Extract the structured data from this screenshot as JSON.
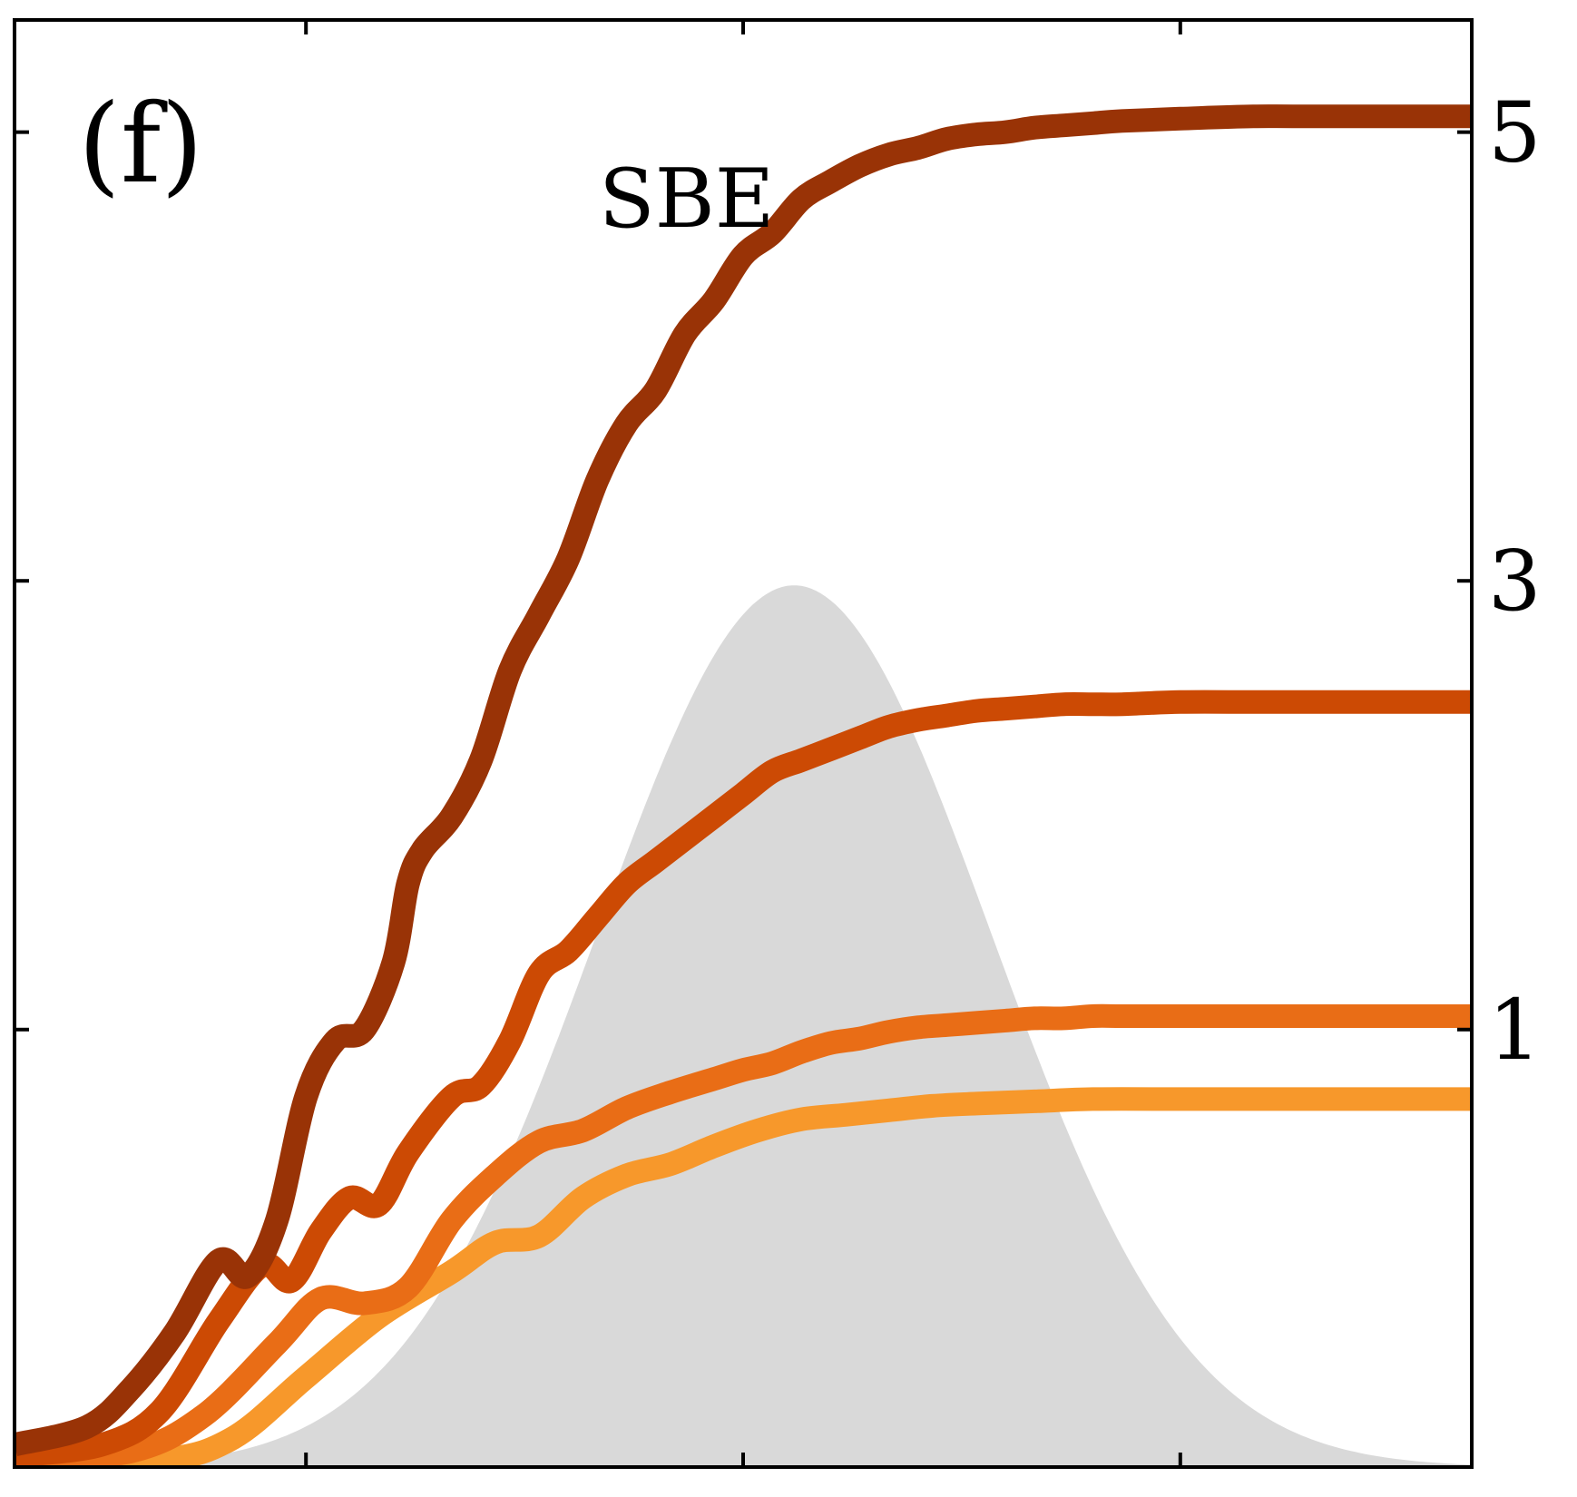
{
  "chart_data": {
    "type": "line",
    "panel_label": "(f)",
    "title": "SBE",
    "xlabel": "",
    "ylabel": "",
    "xlim": [
      0,
      1
    ],
    "ylim": [
      -0.95,
      5.5
    ],
    "x_ticks": [
      0.2,
      0.5,
      0.8
    ],
    "y_axis_side": "right",
    "y_ticks": [
      1,
      3,
      5
    ],
    "y_tick_labels": [
      "1",
      "3",
      "5"
    ],
    "grid": false,
    "legend": "none",
    "background_pulse": {
      "color": "#d9d9d9",
      "center": 0.535,
      "peak": 2.98,
      "baseline": -0.95,
      "width": 0.135
    },
    "series": [
      {
        "color": "#993306",
        "x": [
          0.0,
          0.05,
          0.08,
          0.11,
          0.14,
          0.16,
          0.18,
          0.2,
          0.22,
          0.24,
          0.26,
          0.27,
          0.28,
          0.3,
          0.32,
          0.34,
          0.36,
          0.38,
          0.4,
          0.42,
          0.44,
          0.46,
          0.48,
          0.5,
          0.52,
          0.54,
          0.56,
          0.58,
          0.6,
          0.62,
          0.64,
          0.66,
          0.68,
          0.7,
          0.72,
          0.74,
          0.76,
          0.8,
          0.85,
          0.9,
          1.0
        ],
        "y": [
          -0.85,
          -0.77,
          -0.6,
          -0.35,
          -0.03,
          -0.1,
          0.15,
          0.7,
          0.95,
          1.0,
          1.3,
          1.65,
          1.8,
          1.95,
          2.2,
          2.6,
          2.85,
          3.1,
          3.45,
          3.7,
          3.85,
          4.1,
          4.25,
          4.45,
          4.55,
          4.7,
          4.78,
          4.85,
          4.9,
          4.93,
          4.97,
          4.99,
          5.0,
          5.02,
          5.03,
          5.04,
          5.05,
          5.06,
          5.07,
          5.07,
          5.07
        ]
      },
      {
        "color": "#cc4a04",
        "x": [
          0.0,
          0.06,
          0.1,
          0.14,
          0.17,
          0.19,
          0.21,
          0.23,
          0.25,
          0.27,
          0.3,
          0.32,
          0.34,
          0.36,
          0.38,
          0.4,
          0.42,
          0.44,
          0.46,
          0.48,
          0.5,
          0.52,
          0.54,
          0.56,
          0.58,
          0.6,
          0.62,
          0.64,
          0.66,
          0.68,
          0.7,
          0.72,
          0.74,
          0.76,
          0.8,
          0.85,
          0.9,
          1.0
        ],
        "y": [
          -0.9,
          -0.85,
          -0.7,
          -0.3,
          -0.05,
          -0.12,
          0.1,
          0.25,
          0.22,
          0.45,
          0.7,
          0.75,
          0.95,
          1.25,
          1.35,
          1.5,
          1.65,
          1.75,
          1.85,
          1.95,
          2.05,
          2.15,
          2.2,
          2.25,
          2.3,
          2.35,
          2.38,
          2.4,
          2.42,
          2.43,
          2.44,
          2.45,
          2.45,
          2.45,
          2.46,
          2.46,
          2.46,
          2.46
        ]
      },
      {
        "color": "#e96d16",
        "x": [
          0.0,
          0.08,
          0.13,
          0.18,
          0.21,
          0.24,
          0.27,
          0.3,
          0.33,
          0.36,
          0.39,
          0.42,
          0.45,
          0.48,
          0.5,
          0.52,
          0.54,
          0.56,
          0.58,
          0.6,
          0.62,
          0.64,
          0.66,
          0.68,
          0.7,
          0.72,
          0.74,
          0.76,
          0.8,
          0.85,
          0.9,
          1.0
        ],
        "y": [
          -0.92,
          -0.88,
          -0.72,
          -0.4,
          -0.2,
          -0.22,
          -0.15,
          0.15,
          0.35,
          0.5,
          0.55,
          0.65,
          0.72,
          0.78,
          0.82,
          0.85,
          0.9,
          0.94,
          0.96,
          0.99,
          1.01,
          1.02,
          1.03,
          1.04,
          1.05,
          1.05,
          1.06,
          1.06,
          1.06,
          1.06,
          1.06,
          1.06
        ]
      },
      {
        "color": "#f7982b",
        "x": [
          0.0,
          0.1,
          0.15,
          0.2,
          0.25,
          0.3,
          0.33,
          0.36,
          0.39,
          0.42,
          0.45,
          0.48,
          0.51,
          0.54,
          0.57,
          0.6,
          0.63,
          0.66,
          0.7,
          0.74,
          0.8,
          0.85,
          0.9,
          1.0
        ],
        "y": [
          -0.95,
          -0.92,
          -0.82,
          -0.55,
          -0.28,
          -0.08,
          0.05,
          0.08,
          0.25,
          0.35,
          0.4,
          0.48,
          0.55,
          0.6,
          0.62,
          0.64,
          0.66,
          0.67,
          0.68,
          0.69,
          0.69,
          0.69,
          0.69,
          0.69
        ]
      }
    ]
  }
}
